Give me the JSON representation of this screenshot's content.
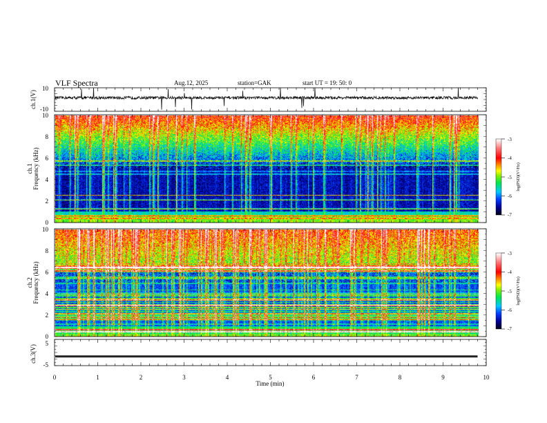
{
  "header": {
    "title": "VLF  Spectra",
    "date": "Aug.12, 2025",
    "station": "station=GAK",
    "start": "start  UT  =    19: 50: 0"
  },
  "colors": {
    "axis": "#000000",
    "trace": "#111111"
  },
  "chart_data": [
    {
      "type": "line",
      "panel": "ch1",
      "ylabel": "ch.1(V)",
      "ylim": [
        -10,
        10
      ],
      "ytick_labels": [
        "10",
        "-10"
      ],
      "baseline_value": 1.5,
      "noise_amplitude": 1.5
    },
    {
      "type": "heatmap",
      "panel": "ch1-spectrogram",
      "ylabel_top": "ch.1",
      "ylabel": "Frequency  (kHz)",
      "ylim": [
        0,
        10
      ],
      "ytick_labels": [
        "0",
        "2",
        "4",
        "6",
        "8",
        "10"
      ],
      "colorbar": {
        "label": "log(PSD)(V²/Hz)",
        "range": [
          -7,
          -3
        ],
        "tick_labels": [
          "-3",
          "-4",
          "-5",
          "-6",
          "-7"
        ]
      }
    },
    {
      "type": "heatmap",
      "panel": "ch2-spectrogram",
      "ylabel_top": "ch.2",
      "ylabel": "Frequency  (kHz)",
      "ylim": [
        0,
        10
      ],
      "ytick_labels": [
        "0",
        "2",
        "4",
        "6",
        "8",
        "10"
      ],
      "colorbar": {
        "label": "log(PSD)(V²/Hz)",
        "range": [
          -7,
          -3
        ],
        "tick_labels": [
          "-3",
          "-4",
          "-5",
          "-6",
          "-7"
        ]
      }
    },
    {
      "type": "line",
      "panel": "ch3",
      "ylabel": "ch.3(V)",
      "ylim": [
        -5,
        5
      ],
      "ytick_labels": [
        "5",
        "-5"
      ],
      "baseline_value": -1.5
    }
  ],
  "xaxis": {
    "label": "Time  (min)",
    "range": [
      0,
      10
    ],
    "data_end": 9.8,
    "tick_labels": [
      "0",
      "1",
      "2",
      "3",
      "4",
      "5",
      "6",
      "7",
      "8",
      "9",
      "10"
    ]
  }
}
